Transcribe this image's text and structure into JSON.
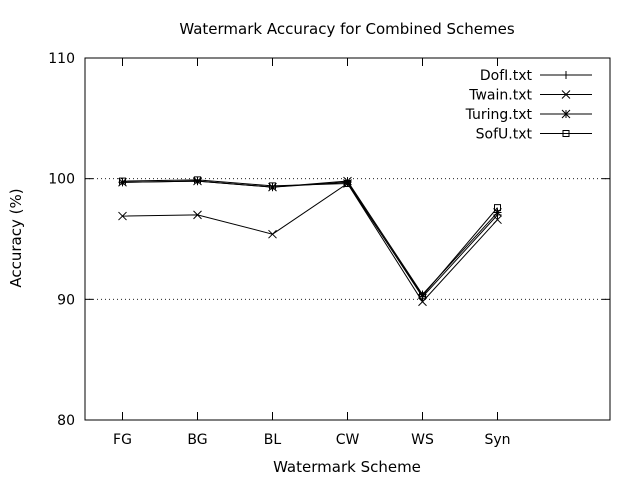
{
  "chart_data": {
    "type": "line",
    "title": "Watermark Accuracy for Combined Schemes",
    "xlabel": "Watermark Scheme",
    "ylabel": "Accuracy (%)",
    "categories": [
      "FG",
      "BG",
      "BL",
      "CW",
      "WS",
      "Syn"
    ],
    "x_slots": 7,
    "ylim": [
      80,
      110
    ],
    "yticks": [
      80,
      90,
      100,
      110
    ],
    "grid": {
      "horizontal_dotted_at": [
        90,
        100
      ]
    },
    "legend": {
      "placement": "top-right"
    },
    "series": [
      {
        "name": "DofI.txt",
        "marker": "plus",
        "values": [
          99.7,
          99.8,
          99.3,
          99.7,
          90.2,
          97.0
        ]
      },
      {
        "name": "Twain.txt",
        "marker": "cross",
        "values": [
          96.9,
          97.0,
          95.4,
          99.6,
          89.8,
          96.6
        ]
      },
      {
        "name": "Turing.txt",
        "marker": "star",
        "values": [
          99.7,
          99.8,
          99.3,
          99.8,
          90.4,
          97.2
        ]
      },
      {
        "name": "SofU.txt",
        "marker": "square",
        "values": [
          99.8,
          99.9,
          99.4,
          99.6,
          90.3,
          97.6
        ]
      }
    ],
    "line_color": "#000000"
  }
}
